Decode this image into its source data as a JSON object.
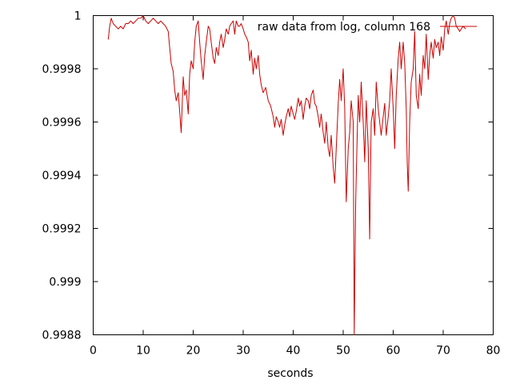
{
  "chart_data": {
    "type": "line",
    "title": "",
    "xlabel": "seconds",
    "ylabel": "",
    "xlim": [
      0,
      80
    ],
    "ylim": [
      0.9988,
      1.0
    ],
    "x_ticks": [
      0,
      10,
      20,
      30,
      40,
      50,
      60,
      70,
      80
    ],
    "x_tick_labels": [
      "0",
      "10",
      "20",
      "30",
      "40",
      "50",
      "60",
      "70",
      "80"
    ],
    "y_ticks": [
      0.9988,
      0.999,
      0.9992,
      0.9994,
      0.9996,
      0.9998,
      1.0
    ],
    "y_tick_labels": [
      "0.9988",
      "0.999",
      "0.9992",
      "0.9994",
      "0.9996",
      "0.9998",
      "1"
    ],
    "grid": false,
    "legend_position": "top-right",
    "series": [
      {
        "name": "raw data from log, column 168",
        "color": "#cc0000",
        "points": [
          [
            3.0,
            0.99991
          ],
          [
            3.3,
            0.99996
          ],
          [
            3.6,
            0.99999
          ],
          [
            4.0,
            0.99997
          ],
          [
            4.5,
            0.99996
          ],
          [
            5.0,
            0.99995
          ],
          [
            5.5,
            0.99996
          ],
          [
            6.0,
            0.99995
          ],
          [
            6.5,
            0.99997
          ],
          [
            7.0,
            0.99997
          ],
          [
            7.5,
            0.99998
          ],
          [
            8.0,
            0.99997
          ],
          [
            8.5,
            0.99998
          ],
          [
            9.0,
            0.99999
          ],
          [
            9.5,
            0.99999
          ],
          [
            10.0,
            1.0
          ],
          [
            10.5,
            0.99998
          ],
          [
            11.0,
            0.99997
          ],
          [
            11.5,
            0.99998
          ],
          [
            12.0,
            0.99999
          ],
          [
            12.5,
            0.99998
          ],
          [
            13.0,
            0.99997
          ],
          [
            13.5,
            0.99998
          ],
          [
            14.0,
            0.99997
          ],
          [
            14.5,
            0.99996
          ],
          [
            15.0,
            0.99994
          ],
          [
            15.3,
            0.99988
          ],
          [
            15.6,
            0.99982
          ],
          [
            16.0,
            0.99979
          ],
          [
            16.3,
            0.99972
          ],
          [
            16.6,
            0.99968
          ],
          [
            17.0,
            0.99971
          ],
          [
            17.3,
            0.99964
          ],
          [
            17.6,
            0.99956
          ],
          [
            18.0,
            0.99977
          ],
          [
            18.3,
            0.9997
          ],
          [
            18.6,
            0.99972
          ],
          [
            19.0,
            0.99963
          ],
          [
            19.3,
            0.99978
          ],
          [
            19.6,
            0.99983
          ],
          [
            20.0,
            0.9998
          ],
          [
            20.3,
            0.9999
          ],
          [
            20.6,
            0.99996
          ],
          [
            21.0,
            0.99998
          ],
          [
            21.3,
            0.9999
          ],
          [
            21.6,
            0.99983
          ],
          [
            22.0,
            0.99976
          ],
          [
            22.3,
            0.99985
          ],
          [
            22.6,
            0.9999
          ],
          [
            23.0,
            0.99996
          ],
          [
            23.3,
            0.99995
          ],
          [
            23.6,
            0.9999
          ],
          [
            24.0,
            0.99984
          ],
          [
            24.3,
            0.99982
          ],
          [
            24.6,
            0.99988
          ],
          [
            25.0,
            0.99985
          ],
          [
            25.3,
            0.9999
          ],
          [
            25.6,
            0.99993
          ],
          [
            26.0,
            0.99988
          ],
          [
            26.3,
            0.99991
          ],
          [
            26.6,
            0.99995
          ],
          [
            27.0,
            0.99993
          ],
          [
            27.3,
            0.99996
          ],
          [
            27.6,
            0.99997
          ],
          [
            28.0,
            0.99998
          ],
          [
            28.3,
            0.99993
          ],
          [
            28.6,
            0.99998
          ],
          [
            29.0,
            0.99996
          ],
          [
            29.3,
            0.99996
          ],
          [
            29.6,
            0.99997
          ],
          [
            30.0,
            0.99995
          ],
          [
            30.3,
            0.99993
          ],
          [
            30.6,
            0.99992
          ],
          [
            31.0,
            0.9999
          ],
          [
            31.3,
            0.99983
          ],
          [
            31.6,
            0.99987
          ],
          [
            32.0,
            0.99978
          ],
          [
            32.3,
            0.99984
          ],
          [
            32.6,
            0.9998
          ],
          [
            33.0,
            0.99985
          ],
          [
            33.3,
            0.99978
          ],
          [
            33.6,
            0.99974
          ],
          [
            34.0,
            0.99971
          ],
          [
            34.5,
            0.99973
          ],
          [
            35.0,
            0.99968
          ],
          [
            35.5,
            0.99966
          ],
          [
            36.0,
            0.99962
          ],
          [
            36.3,
            0.99958
          ],
          [
            36.6,
            0.99962
          ],
          [
            37.0,
            0.9996
          ],
          [
            37.3,
            0.99958
          ],
          [
            37.6,
            0.99961
          ],
          [
            38.0,
            0.99955
          ],
          [
            38.3,
            0.99959
          ],
          [
            38.6,
            0.99962
          ],
          [
            39.0,
            0.99965
          ],
          [
            39.3,
            0.99962
          ],
          [
            39.6,
            0.99966
          ],
          [
            40.0,
            0.99963
          ],
          [
            40.3,
            0.99961
          ],
          [
            40.6,
            0.99964
          ],
          [
            41.0,
            0.99969
          ],
          [
            41.3,
            0.99966
          ],
          [
            41.6,
            0.99968
          ],
          [
            42.0,
            0.99961
          ],
          [
            42.3,
            0.99966
          ],
          [
            42.6,
            0.99969
          ],
          [
            43.0,
            0.99968
          ],
          [
            43.3,
            0.99965
          ],
          [
            43.6,
            0.9997
          ],
          [
            44.0,
            0.99972
          ],
          [
            44.3,
            0.99967
          ],
          [
            44.6,
            0.99966
          ],
          [
            45.0,
            0.99962
          ],
          [
            45.3,
            0.99958
          ],
          [
            45.6,
            0.99963
          ],
          [
            46.0,
            0.99956
          ],
          [
            46.3,
            0.99952
          ],
          [
            46.6,
            0.9996
          ],
          [
            47.0,
            0.9995
          ],
          [
            47.3,
            0.99947
          ],
          [
            47.6,
            0.99955
          ],
          [
            48.0,
            0.99943
          ],
          [
            48.3,
            0.99937
          ],
          [
            48.6,
            0.9995
          ],
          [
            49.0,
            0.99967
          ],
          [
            49.3,
            0.99976
          ],
          [
            49.6,
            0.99968
          ],
          [
            50.0,
            0.9998
          ],
          [
            50.3,
            0.99965
          ],
          [
            50.6,
            0.9993
          ],
          [
            51.0,
            0.9995
          ],
          [
            51.3,
            0.99956
          ],
          [
            51.6,
            0.99968
          ],
          [
            52.0,
            0.9996
          ],
          [
            52.2,
            0.9988
          ],
          [
            52.5,
            0.9993
          ],
          [
            52.8,
            0.99955
          ],
          [
            53.0,
            0.9997
          ],
          [
            53.3,
            0.9996
          ],
          [
            53.6,
            0.99975
          ],
          [
            54.0,
            0.9996
          ],
          [
            54.3,
            0.99945
          ],
          [
            54.6,
            0.99968
          ],
          [
            55.0,
            0.9995
          ],
          [
            55.3,
            0.99916
          ],
          [
            55.6,
            0.9996
          ],
          [
            56.0,
            0.99965
          ],
          [
            56.3,
            0.99955
          ],
          [
            56.6,
            0.99975
          ],
          [
            57.0,
            0.99965
          ],
          [
            57.3,
            0.9996
          ],
          [
            57.6,
            0.99955
          ],
          [
            58.0,
            0.99962
          ],
          [
            58.3,
            0.99967
          ],
          [
            58.6,
            0.99955
          ],
          [
            59.0,
            0.99962
          ],
          [
            59.3,
            0.99968
          ],
          [
            59.6,
            0.9998
          ],
          [
            60.0,
            0.99965
          ],
          [
            60.3,
            0.9995
          ],
          [
            60.6,
            0.9997
          ],
          [
            61.0,
            0.99984
          ],
          [
            61.3,
            0.9999
          ],
          [
            61.6,
            0.9998
          ],
          [
            62.0,
            0.9999
          ],
          [
            62.3,
            0.99982
          ],
          [
            62.6,
            0.99965
          ],
          [
            62.8,
            0.99945
          ],
          [
            63.0,
            0.99934
          ],
          [
            63.3,
            0.9996
          ],
          [
            63.6,
            0.99975
          ],
          [
            64.0,
            0.9998
          ],
          [
            64.3,
            0.99994
          ],
          [
            64.6,
            0.9997
          ],
          [
            65.0,
            0.99965
          ],
          [
            65.3,
            0.99978
          ],
          [
            65.6,
            0.9997
          ],
          [
            66.0,
            0.99985
          ],
          [
            66.3,
            0.9998
          ],
          [
            66.6,
            0.99993
          ],
          [
            67.0,
            0.99976
          ],
          [
            67.3,
            0.99985
          ],
          [
            67.6,
            0.9999
          ],
          [
            68.0,
            0.99984
          ],
          [
            68.3,
            0.99991
          ],
          [
            68.6,
            0.99988
          ],
          [
            69.0,
            0.9999
          ],
          [
            69.3,
            0.99985
          ],
          [
            69.6,
            0.99992
          ],
          [
            70.0,
            0.99987
          ],
          [
            70.3,
            0.99995
          ],
          [
            70.6,
            0.99998
          ],
          [
            71.0,
            0.99993
          ],
          [
            71.3,
            0.99997
          ],
          [
            71.6,
            0.99999
          ],
          [
            72.0,
            1.0
          ],
          [
            72.3,
            0.99999
          ],
          [
            72.6,
            0.99996
          ],
          [
            73.0,
            0.99995
          ],
          [
            73.3,
            0.99994
          ],
          [
            73.6,
            0.99995
          ],
          [
            74.0,
            0.99996
          ],
          [
            74.5,
            0.99995
          ]
        ]
      }
    ]
  }
}
